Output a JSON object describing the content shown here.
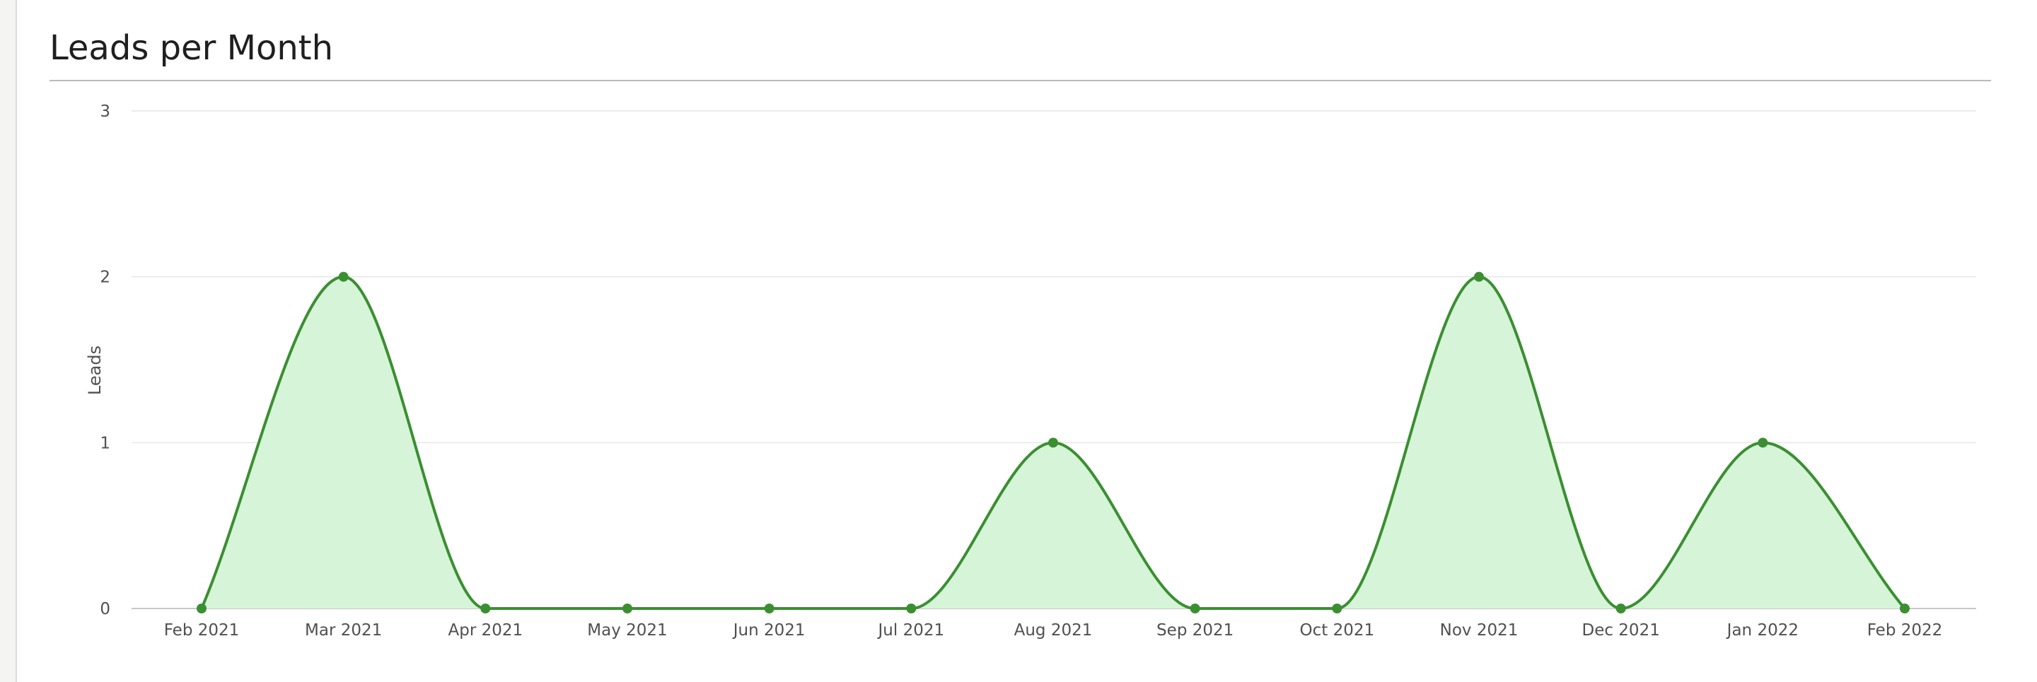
{
  "panel": {
    "title": "Leads per Month"
  },
  "chart_data": {
    "type": "area",
    "title": "Leads per Month",
    "xlabel": "",
    "ylabel": "Leads",
    "categories": [
      "Feb 2021",
      "Mar 2021",
      "Apr 2021",
      "May 2021",
      "Jun 2021",
      "Jul 2021",
      "Aug 2021",
      "Sep 2021",
      "Oct 2021",
      "Nov 2021",
      "Dec 2021",
      "Jan 2022",
      "Feb 2022"
    ],
    "series": [
      {
        "values": [
          0,
          2,
          0,
          0,
          0,
          0,
          1,
          0,
          0,
          2,
          0,
          1,
          0
        ]
      }
    ],
    "ylim": [
      0,
      3
    ],
    "yticks": [
      0,
      1,
      2,
      3
    ],
    "grid": true,
    "legend": "none",
    "colors": {
      "line": "#3b8f32",
      "fill": "#d6f5d8",
      "point": "#3b8f32",
      "grid": "#e6e6e6",
      "axis": "#c8c8c8"
    }
  }
}
